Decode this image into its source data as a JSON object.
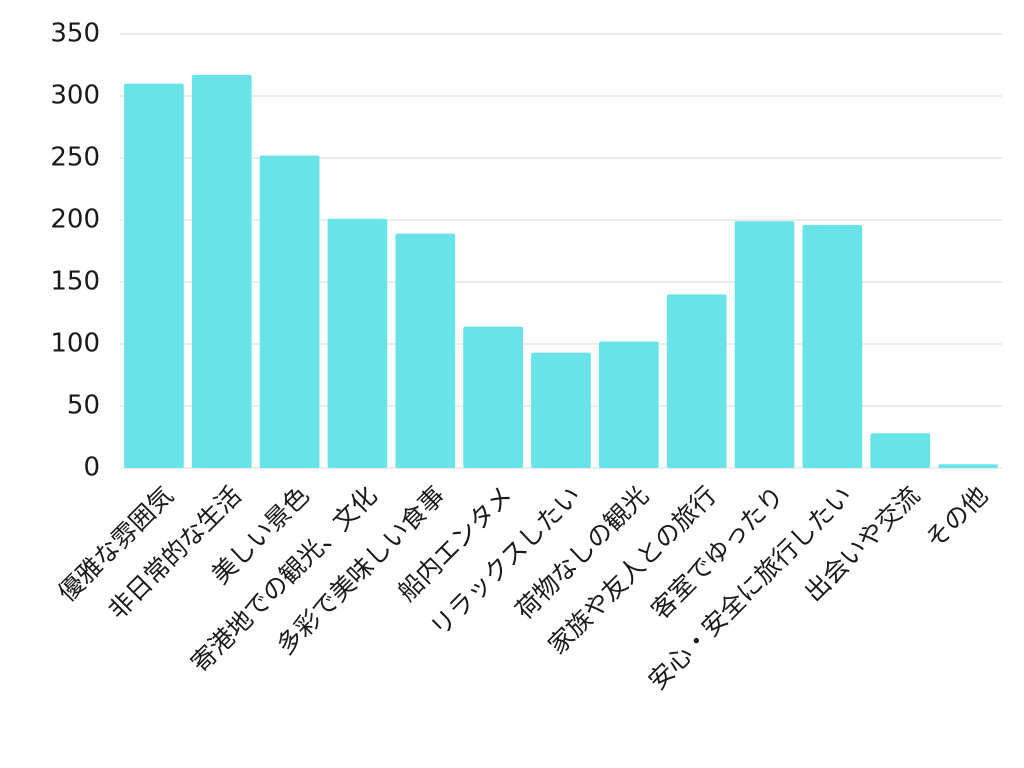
{
  "chart_data": {
    "type": "bar",
    "categories": [
      "優雅な雰囲気",
      "非日常的な生活",
      "美しい景色",
      "寄港地での観光、文化",
      "多彩で美味しい食事",
      "船内エンタメ",
      "リラックスしたい",
      "荷物なしの観光",
      "家族や友人との旅行",
      "客室でゆったり",
      "安心・安全に旅行したい",
      "出会いや交流",
      "その他"
    ],
    "values": [
      310,
      317,
      252,
      201,
      189,
      114,
      93,
      102,
      140,
      199,
      196,
      28,
      3
    ],
    "color": "#68e4e8",
    "ylim": [
      0,
      350
    ],
    "yticks": [
      0,
      50,
      100,
      150,
      200,
      250,
      300,
      350
    ],
    "grid": true
  }
}
